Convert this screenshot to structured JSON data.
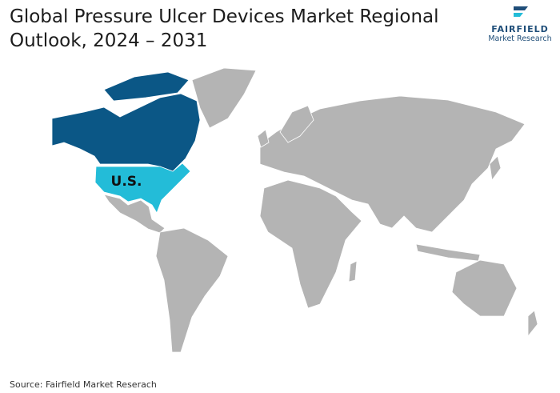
{
  "header": {
    "title": "Global Pressure Ulcer Devices Market Regional Outlook, 2024 – 2031"
  },
  "logo": {
    "name": "FAIRFIELD",
    "tagline": "Market Research"
  },
  "map": {
    "highlight_label": "U.S."
  },
  "footer": {
    "source": "Source: Fairfield Market Reserach"
  }
}
